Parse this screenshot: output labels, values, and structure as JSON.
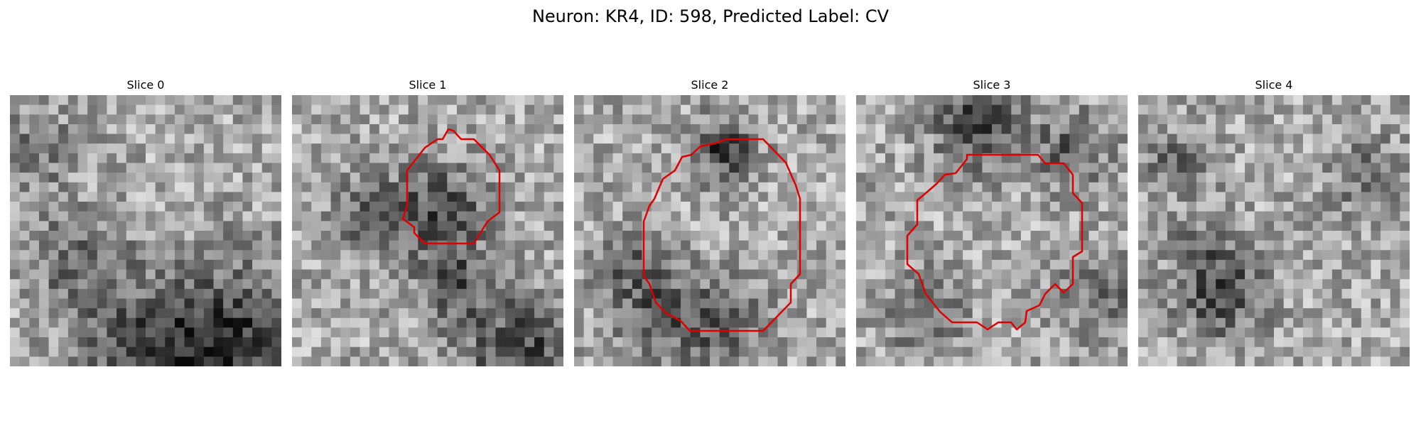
{
  "figure": {
    "title": "Neuron: KR4, ID: 598, Predicted Label: CV"
  },
  "panels": [
    {
      "title": "Slice 0",
      "has_contour": false,
      "seed": 11,
      "dark_spots": [
        [
          0.25,
          0.6,
          0.12,
          0.35
        ],
        [
          0.85,
          0.9,
          0.2,
          0.55
        ],
        [
          0.5,
          0.95,
          0.18,
          0.45
        ],
        [
          0.1,
          0.2,
          0.1,
          0.3
        ]
      ]
    },
    {
      "title": "Slice 1",
      "has_contour": true,
      "seed": 23,
      "dark_spots": [
        [
          0.55,
          0.42,
          0.12,
          0.45
        ],
        [
          0.3,
          0.45,
          0.1,
          0.35
        ],
        [
          0.6,
          0.7,
          0.1,
          0.4
        ],
        [
          0.85,
          0.95,
          0.15,
          0.5
        ]
      ]
    },
    {
      "title": "Slice 2",
      "has_contour": true,
      "seed": 37,
      "dark_spots": [
        [
          0.55,
          0.2,
          0.08,
          0.55
        ],
        [
          0.3,
          0.8,
          0.12,
          0.4
        ],
        [
          0.55,
          0.85,
          0.12,
          0.35
        ],
        [
          0.2,
          0.6,
          0.08,
          0.3
        ]
      ]
    },
    {
      "title": "Slice 3",
      "has_contour": true,
      "seed": 51,
      "dark_spots": [
        [
          0.45,
          0.1,
          0.12,
          0.5
        ],
        [
          0.25,
          0.8,
          0.1,
          0.35
        ],
        [
          0.8,
          0.2,
          0.1,
          0.35
        ],
        [
          0.9,
          0.75,
          0.12,
          0.3
        ]
      ]
    },
    {
      "title": "Slice 4",
      "has_contour": false,
      "seed": 67,
      "dark_spots": [
        [
          0.3,
          0.72,
          0.12,
          0.5
        ],
        [
          0.15,
          0.25,
          0.08,
          0.35
        ],
        [
          0.85,
          0.3,
          0.1,
          0.3
        ],
        [
          0.2,
          0.55,
          0.06,
          0.25
        ]
      ]
    }
  ],
  "contour_color": "#e00000"
}
